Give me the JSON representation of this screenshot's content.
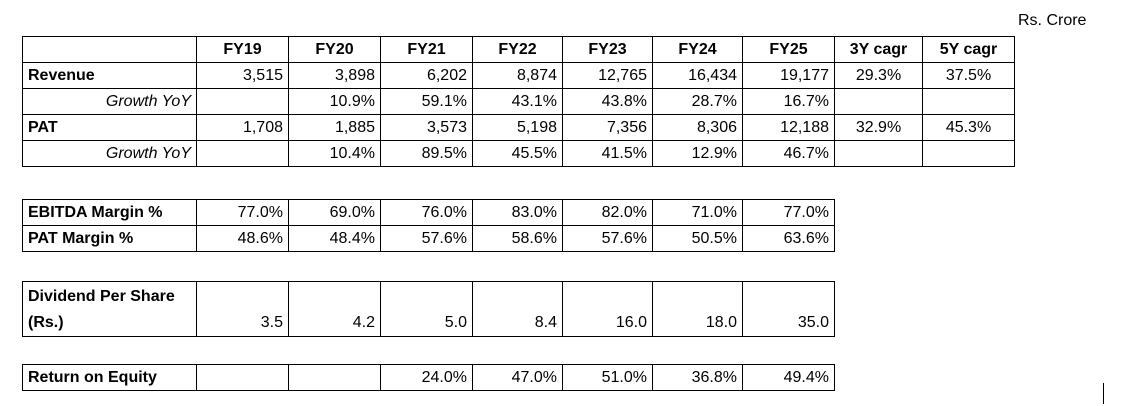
{
  "unit_label": "Rs. Crore",
  "headers": [
    "FY19",
    "FY20",
    "FY21",
    "FY22",
    "FY23",
    "FY24",
    "FY25",
    "3Y cagr",
    "5Y cagr"
  ],
  "table1": {
    "rows": [
      {
        "label": "Revenue",
        "style": "lbl",
        "cells": [
          "3,515",
          "3,898",
          "6,202",
          "8,874",
          "12,765",
          "16,434",
          "19,177",
          "29.3%",
          "37.5%"
        ]
      },
      {
        "label": "Growth YoY",
        "style": "sub",
        "cells": [
          "",
          "10.9%",
          "59.1%",
          "43.1%",
          "43.8%",
          "28.7%",
          "16.7%",
          "",
          ""
        ]
      },
      {
        "label": "PAT",
        "style": "lbl",
        "cells": [
          "1,708",
          "1,885",
          "3,573",
          "5,198",
          "7,356",
          "8,306",
          "12,188",
          "32.9%",
          "45.3%"
        ]
      },
      {
        "label": "Growth YoY",
        "style": "sub",
        "cells": [
          "",
          "10.4%",
          "89.5%",
          "45.5%",
          "41.5%",
          "12.9%",
          "46.7%",
          "",
          ""
        ]
      }
    ]
  },
  "table2": {
    "rows": [
      {
        "label": "EBITDA Margin %",
        "cells": [
          "77.0%",
          "69.0%",
          "76.0%",
          "83.0%",
          "82.0%",
          "71.0%",
          "77.0%"
        ]
      },
      {
        "label": "PAT Margin %",
        "cells": [
          "48.6%",
          "48.4%",
          "57.6%",
          "58.6%",
          "57.6%",
          "50.5%",
          "63.6%"
        ]
      }
    ]
  },
  "table3": {
    "label_line1": "Dividend Per Share",
    "label_line2": "(Rs.)",
    "cells": [
      "3.5",
      "4.2",
      "5.0",
      "8.4",
      "16.0",
      "18.0",
      "35.0"
    ]
  },
  "table4": {
    "label": "Return on Equity",
    "cells": [
      "",
      "",
      "24.0%",
      "47.0%",
      "51.0%",
      "36.8%",
      "49.4%"
    ]
  }
}
